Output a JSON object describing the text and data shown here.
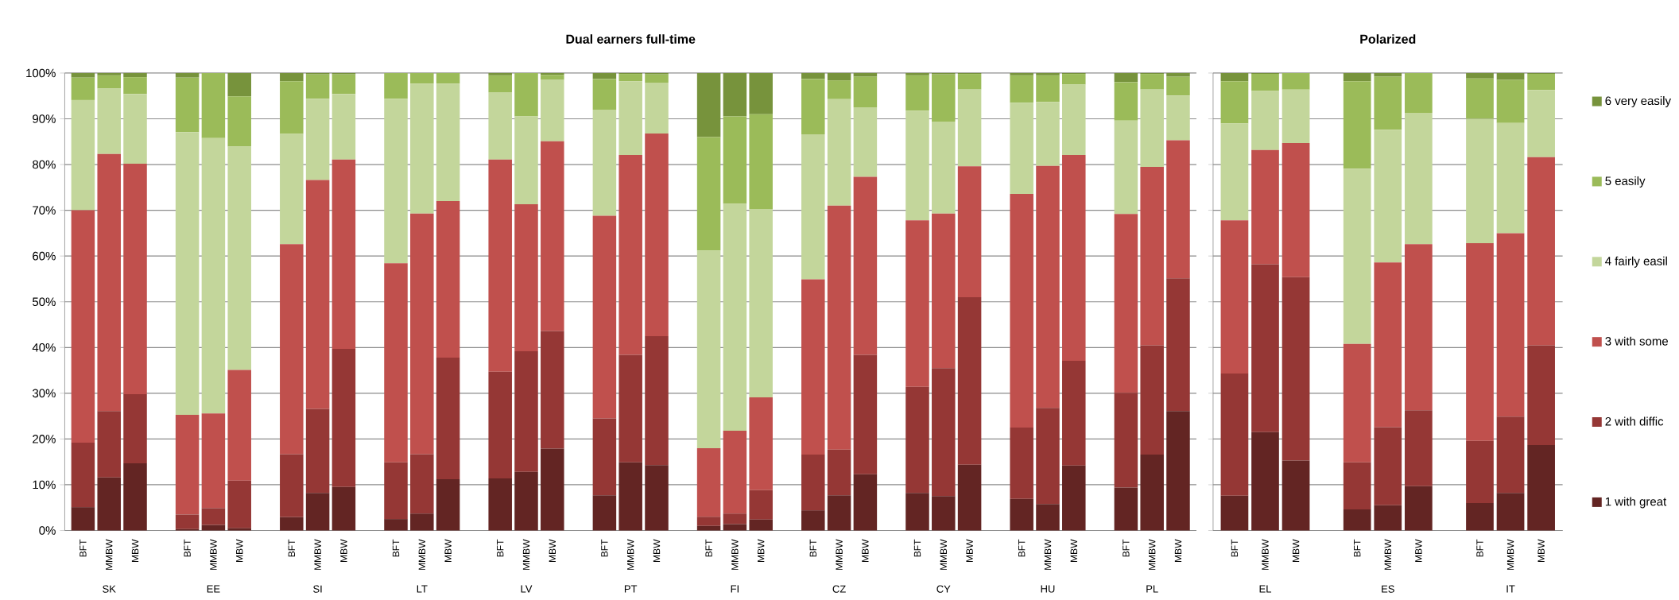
{
  "chart_data": [
    {
      "type": "bar",
      "stacked": true,
      "title": "Dual earners full-time",
      "categories": [
        "BFT",
        "MMBW",
        "MBW",
        "BFT",
        "MMBW",
        "MBW",
        "BFT",
        "MMBW",
        "MBW",
        "BFT",
        "MMBW",
        "MBW",
        "BFT",
        "MMBW",
        "MBW",
        "BFT",
        "MMBW",
        "MBW",
        "BFT",
        "MMBW",
        "MBW",
        "BFT",
        "MMBW",
        "MBW",
        "BFT",
        "MMBW",
        "MBW",
        "BFT",
        "MMBW",
        "MBW",
        "BFT",
        "MMBW",
        "MBW"
      ],
      "annotations": [
        "SK",
        "EE",
        "SI",
        "LT",
        "LV",
        "PT",
        "FI",
        "CZ",
        "CY",
        "HU",
        "PL"
      ],
      "ylim": [
        0,
        100
      ],
      "yticks": [
        {
          "value": 0,
          "label": "0%"
        },
        {
          "value": 10,
          "label": "10%"
        },
        {
          "value": 20,
          "label": "20%"
        },
        {
          "value": 30,
          "label": "30%"
        },
        {
          "value": 40,
          "label": "40%"
        },
        {
          "value": 50,
          "label": "50%"
        },
        {
          "value": 60,
          "label": "60%"
        },
        {
          "value": 70,
          "label": "70%"
        },
        {
          "value": 80,
          "label": "80%"
        },
        {
          "value": 90,
          "label": "90%"
        },
        {
          "value": 100,
          "label": "100%"
        }
      ],
      "grid": "y",
      "series": [
        {
          "color": "#632523",
          "values": [
            5.1,
            11.6,
            14.7,
            0.3,
            1.2,
            0.5,
            2.9,
            8.2,
            9.5,
            2.5,
            3.7,
            11.2,
            11.4,
            12.8,
            17.9,
            7.7,
            14.9,
            14.3,
            1.0,
            1.4,
            2.4,
            4.4,
            7.7,
            12.3,
            8.2,
            7.5,
            14.4,
            6.9,
            5.8,
            14.2,
            9.4,
            16.6,
            26.1
          ]
        },
        {
          "color": "#953735",
          "values": [
            14.1,
            14.5,
            15.1,
            3.2,
            3.7,
            10.4,
            13.8,
            18.4,
            30.2,
            12.4,
            13.0,
            26.6,
            23.3,
            26.4,
            25.7,
            16.8,
            23.5,
            28.2,
            2.0,
            2.3,
            6.4,
            12.2,
            10.0,
            26.1,
            23.2,
            28.0,
            36.6,
            15.6,
            21.0,
            22.9,
            20.7,
            23.9,
            29.0
          ]
        },
        {
          "color": "#c0504d",
          "values": [
            50.8,
            56.2,
            50.4,
            21.8,
            20.7,
            24.2,
            45.9,
            50.0,
            41.4,
            43.5,
            52.6,
            34.2,
            46.4,
            32.1,
            41.5,
            44.3,
            43.7,
            44.3,
            15.0,
            18.1,
            20.3,
            38.3,
            53.3,
            38.9,
            36.4,
            33.8,
            28.6,
            51.1,
            52.9,
            45.0,
            39.1,
            39.0,
            30.2
          ]
        },
        {
          "color": "#c3d69b",
          "values": [
            24.1,
            14.3,
            15.2,
            61.8,
            60.2,
            48.8,
            24.1,
            17.8,
            14.3,
            36.0,
            28.4,
            25.7,
            14.7,
            19.2,
            13.4,
            23.2,
            16.1,
            11.1,
            43.2,
            49.6,
            41.2,
            31.7,
            23.3,
            15.2,
            24.0,
            20.1,
            16.8,
            19.9,
            14.0,
            15.4,
            20.4,
            16.9,
            9.8
          ]
        },
        {
          "color": "#9bbb59",
          "values": [
            4.9,
            2.9,
            3.7,
            11.9,
            14.2,
            11.0,
            11.5,
            5.3,
            4.3,
            5.6,
            2.3,
            2.3,
            3.7,
            9.5,
            1.1,
            6.7,
            1.6,
            1.8,
            24.8,
            19.1,
            20.7,
            12.1,
            4.1,
            6.7,
            7.7,
            10.3,
            3.4,
            6.0,
            5.8,
            2.3,
            8.4,
            3.4,
            4.1
          ]
        },
        {
          "color": "#77933c",
          "values": [
            1.0,
            0.5,
            0.9,
            1.0,
            0,
            5.1,
            1.8,
            0.3,
            0.3,
            0,
            0,
            0,
            0.5,
            0,
            0.4,
            1.3,
            0.2,
            0.3,
            14.0,
            9.5,
            9.0,
            1.3,
            1.6,
            0.8,
            0.5,
            0.3,
            0.2,
            0.5,
            0.5,
            0.2,
            2.0,
            0.2,
            0.8
          ]
        }
      ]
    },
    {
      "type": "bar",
      "stacked": true,
      "title": "Polarized",
      "categories": [
        "BFT",
        "MMBW",
        "MBW",
        "BFT",
        "MMBW",
        "MBW",
        "BFT",
        "MMBW",
        "MBW"
      ],
      "annotations": [
        "EL",
        "ES",
        "IT"
      ],
      "ylim": [
        0,
        100
      ],
      "yticks": [
        {
          "value": 0,
          "label": null
        },
        {
          "value": 10,
          "label": null
        },
        {
          "value": 20,
          "label": null
        },
        {
          "value": 30,
          "label": null
        },
        {
          "value": 40,
          "label": null
        },
        {
          "value": 50,
          "label": null
        },
        {
          "value": 60,
          "label": null
        },
        {
          "value": 70,
          "label": null
        },
        {
          "value": 80,
          "label": null
        },
        {
          "value": 90,
          "label": null
        },
        {
          "value": 100,
          "label": null
        }
      ],
      "tick_labels": "x",
      "grid": "y",
      "legend": "right",
      "series": [
        {
          "name": "1 with great",
          "color": "#632523",
          "values": [
            7.6,
            21.5,
            15.3,
            4.6,
            5.5,
            9.7,
            6.0,
            8.2,
            18.7
          ]
        },
        {
          "name": "2 with diffic",
          "color": "#953735",
          "values": [
            26.7,
            36.7,
            40.1,
            10.3,
            17.1,
            16.6,
            13.6,
            16.7,
            21.8
          ]
        },
        {
          "name": "3 with some",
          "color": "#c0504d",
          "values": [
            33.5,
            25.0,
            29.3,
            25.9,
            36.0,
            36.3,
            43.2,
            40.1,
            41.1
          ]
        },
        {
          "name": "4 fairly easil",
          "color": "#c3d69b",
          "values": [
            21.2,
            12.9,
            11.7,
            38.3,
            29.0,
            28.7,
            27.2,
            24.1,
            14.7
          ]
        },
        {
          "name": "5 easily",
          "color": "#9bbb59",
          "values": [
            9.2,
            3.7,
            3.6,
            19.1,
            11.6,
            8.7,
            8.8,
            9.4,
            3.5
          ]
        },
        {
          "name": "6 very easily",
          "color": "#77933c",
          "values": [
            1.8,
            0.2,
            0,
            1.8,
            0.8,
            0,
            1.2,
            1.5,
            0.2
          ]
        }
      ]
    }
  ]
}
